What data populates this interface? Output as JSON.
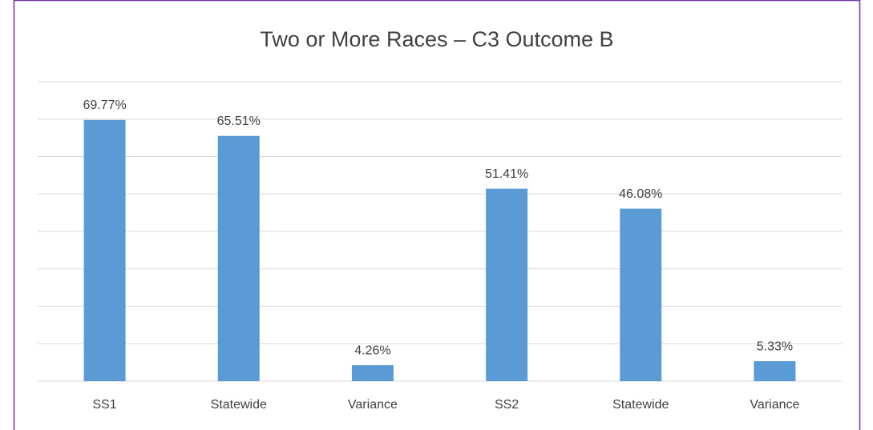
{
  "chart_data": {
    "type": "bar",
    "title": "Two or More Races – C3 Outcome B",
    "categories": [
      "SS1",
      "Statewide",
      "Variance",
      "SS2",
      "Statewide",
      "Variance"
    ],
    "values": [
      69.77,
      65.51,
      4.26,
      51.41,
      46.08,
      5.33
    ],
    "value_labels": [
      "69.77%",
      "65.51%",
      "4.26%",
      "51.41%",
      "46.08%",
      "5.33%"
    ],
    "color": "#5b9bd5",
    "ylim": [
      0,
      80
    ],
    "yticks": [
      0,
      10,
      20,
      30,
      40,
      50,
      60,
      70,
      80
    ],
    "grid": true
  }
}
